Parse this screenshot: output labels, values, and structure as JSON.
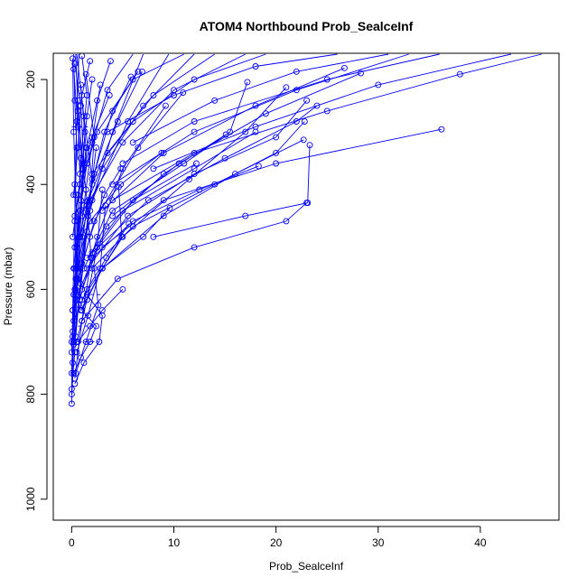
{
  "chart_data": {
    "type": "scatter",
    "title": "ATOM4 Northbound Prob_SealceInf",
    "xlabel": "Prob_SealceInf",
    "ylabel": "Pressure (mbar)",
    "xlim": [
      -1.8,
      47.7
    ],
    "ylim": [
      1040,
      150
    ],
    "y_reversed": true,
    "x_ticks": [
      0,
      10,
      20,
      30,
      40
    ],
    "y_ticks": [
      200,
      400,
      600,
      800,
      1000
    ],
    "grid": false,
    "legend": "none",
    "series_color": "#0000ff",
    "line_styles": [
      "solid",
      "dashed"
    ],
    "profiles": [
      {
        "x": [
          0.2,
          0.3,
          0.5,
          0.3,
          0.1,
          0.0
        ],
        "y": [
          150,
          240,
          330,
          460,
          640,
          800
        ]
      },
      {
        "x": [
          0.4,
          0.6,
          0.8,
          0.5,
          0.2,
          0.0
        ],
        "y": [
          150,
          260,
          380,
          520,
          700,
          818
        ]
      },
      {
        "x": [
          0.1,
          0.2,
          0.4,
          0.6,
          0.3,
          0.0
        ],
        "y": [
          160,
          300,
          420,
          560,
          720,
          790
        ]
      },
      {
        "x": [
          0.7,
          0.5,
          0.3,
          0.4,
          0.1,
          0.0
        ],
        "y": [
          150,
          280,
          400,
          580,
          690,
          760
        ]
      },
      {
        "x": [
          0.3,
          0.9,
          1.2,
          0.8,
          0.4,
          0.1
        ],
        "y": [
          170,
          250,
          360,
          500,
          620,
          740
        ]
      },
      {
        "x": [
          1.0,
          1.5,
          0.9,
          0.6,
          0.2,
          0.0
        ],
        "y": [
          155,
          230,
          350,
          470,
          610,
          720
        ]
      },
      {
        "x": [
          0.2,
          0.6,
          1.4,
          1.9,
          1.0,
          0.3
        ],
        "y": [
          180,
          290,
          410,
          540,
          660,
          770
        ]
      },
      {
        "x": [
          0.5,
          1.2,
          2.0,
          1.5,
          0.7,
          0.2
        ],
        "y": [
          150,
          270,
          390,
          490,
          630,
          705
        ]
      },
      {
        "x": [
          3.8,
          2.5,
          1.5,
          0.8,
          0.3
        ],
        "y": [
          165,
          240,
          330,
          450,
          600
        ]
      },
      {
        "x": [
          2.8,
          2.0,
          1.2,
          0.6,
          0.1
        ],
        "y": [
          210,
          320,
          440,
          560,
          680
        ]
      },
      {
        "x": [
          1.4,
          2.2,
          1.8,
          1.0,
          0.4
        ],
        "y": [
          190,
          310,
          430,
          550,
          690
        ]
      },
      {
        "x": [
          6.5,
          4.0,
          2.2,
          1.0
        ],
        "y": [
          185,
          260,
          380,
          500
        ]
      },
      {
        "x": [
          5.8,
          3.2,
          1.6,
          0.5
        ],
        "y": [
          195,
          300,
          430,
          580
        ]
      },
      {
        "x": [
          6.9,
          4.5,
          2.0,
          0.5
        ],
        "y": [
          185,
          280,
          400,
          520
        ]
      },
      {
        "x": [
          8.8,
          4.8,
          1.8,
          0.3
        ],
        "y": [
          340,
          400,
          470,
          560
        ]
      },
      {
        "x": [
          9.2,
          5.0,
          2.5,
          0.8
        ],
        "y": [
          250,
          370,
          500,
          620
        ]
      },
      {
        "x": [
          9.6,
          7.0,
          3.0,
          0.9
        ],
        "y": [
          445,
          500,
          560,
          640
        ]
      },
      {
        "x": [
          5.0,
          3.0,
          1.8,
          0.6
        ],
        "y": [
          600,
          640,
          670,
          700
        ]
      },
      {
        "x": [
          10.9,
          6.5,
          2.2,
          0.4
        ],
        "y": [
          225,
          330,
          470,
          600
        ]
      },
      {
        "x": [
          12.2,
          6.0,
          2.5,
          0.6
        ],
        "y": [
          360,
          430,
          520,
          610
        ]
      },
      {
        "x": [
          15.1,
          9.0,
          3.4,
          1.0
        ],
        "y": [
          305,
          380,
          480,
          600
        ]
      },
      {
        "x": [
          17.2,
          15.5,
          11.0,
          4.0,
          1.2
        ],
        "y": [
          205,
          300,
          360,
          450,
          560
        ]
      },
      {
        "x": [
          18.0,
          12.0,
          5.0,
          1.5
        ],
        "y": [
          300,
          370,
          450,
          540
        ]
      },
      {
        "x": [
          18.3,
          12.5,
          6.0,
          2.0
        ],
        "y": [
          365,
          410,
          470,
          540
        ]
      },
      {
        "x": [
          21.0,
          17.0,
          11.5,
          5.0,
          1.0
        ],
        "y": [
          215,
          300,
          390,
          500,
          620
        ]
      },
      {
        "x": [
          22.7,
          16.0,
          9.0,
          3.0
        ],
        "y": [
          315,
          380,
          460,
          560
        ]
      },
      {
        "x": [
          23.0,
          21.0,
          12.0,
          4.5,
          1.0
        ],
        "y": [
          435,
          470,
          520,
          580,
          660
        ]
      },
      {
        "x": [
          22.8,
          20.0,
          14.0,
          6.0,
          2.0
        ],
        "y": [
          280,
          340,
          400,
          480,
          560
        ]
      },
      {
        "x": [
          23.0,
          20.0,
          12.0,
          5.5,
          1.5
        ],
        "y": [
          240,
          310,
          380,
          460,
          560
        ]
      },
      {
        "x": [
          23.3,
          23.1,
          17.0,
          8.0
        ],
        "y": [
          325,
          435,
          460,
          500
        ]
      },
      {
        "x": [
          24.0,
          22.0,
          15.0,
          7.5,
          2.0
        ],
        "y": [
          250,
          280,
          350,
          430,
          530
        ]
      },
      {
        "x": [
          26.7,
          18.0,
          9.0,
          3.0
        ],
        "y": [
          178,
          250,
          340,
          450
        ]
      },
      {
        "x": [
          28.3,
          19.0,
          10.5,
          4.0
        ],
        "y": [
          188,
          265,
          360,
          460
        ]
      },
      {
        "x": [
          36.2,
          20.0,
          9.0,
          3.0
        ],
        "y": [
          295,
          360,
          430,
          520
        ]
      },
      {
        "x": [
          33.0,
          22.0,
          12.0,
          4.0
        ],
        "y": [
          150,
          220,
          300,
          400
        ]
      },
      {
        "x": [
          43.0,
          30.0,
          18.0,
          8.0
        ],
        "y": [
          150,
          210,
          290,
          370
        ]
      },
      {
        "x": [
          46.0,
          38.0,
          25.0,
          12.0,
          4.0
        ],
        "y": [
          150,
          190,
          260,
          340,
          430
        ]
      },
      {
        "x": [
          36.0,
          25.0,
          12.0,
          5.0
        ],
        "y": [
          150,
          200,
          280,
          360
        ]
      },
      {
        "x": [
          31.0,
          22.0,
          14.0,
          6.0
        ],
        "y": [
          150,
          185,
          240,
          320
        ]
      },
      {
        "x": [
          26.0,
          18.0,
          10.0,
          3.5
        ],
        "y": [
          150,
          175,
          230,
          300
        ]
      },
      {
        "x": [
          19.0,
          12.0,
          6.0,
          2.0
        ],
        "y": [
          150,
          200,
          280,
          380
        ]
      },
      {
        "x": [
          17.0,
          10.0,
          5.0,
          1.5
        ],
        "y": [
          150,
          220,
          320,
          440
        ]
      },
      {
        "x": [
          14.0,
          8.0,
          3.5,
          1.0
        ],
        "y": [
          150,
          230,
          340,
          460
        ]
      },
      {
        "x": [
          12.0,
          7.0,
          3.0,
          0.8
        ],
        "y": [
          150,
          250,
          370,
          500
        ]
      },
      {
        "x": [
          11.0,
          6.0,
          2.5,
          0.6
        ],
        "y": [
          150,
          200,
          300,
          420
        ]
      },
      {
        "x": [
          9.5,
          5.5,
          2.0,
          0.5
        ],
        "y": [
          150,
          280,
          430,
          580
        ]
      },
      {
        "x": [
          7.0,
          4.0,
          1.8,
          0.4
        ],
        "y": [
          150,
          300,
          450,
          610
        ]
      },
      {
        "x": [
          6.0,
          3.5,
          1.5,
          0.3
        ],
        "y": [
          150,
          220,
          360,
          520
        ]
      },
      {
        "x": [
          4.8,
          3.2,
          1.8,
          0.6
        ],
        "y": [
          370,
          420,
          500,
          580
        ]
      },
      {
        "x": [
          4.6,
          4.9,
          3.0,
          1.0
        ],
        "y": [
          405,
          500,
          560,
          640
        ]
      },
      {
        "x": [
          3.0,
          2.5,
          1.5,
          0.5
        ],
        "y": [
          410,
          520,
          620,
          700
        ]
      },
      {
        "x": [
          3.3,
          2.8,
          1.6,
          0.5
        ],
        "y": [
          440,
          560,
          650,
          720
        ]
      },
      {
        "x": [
          2.2,
          2.6,
          1.4,
          0.4
        ],
        "y": [
          560,
          630,
          700,
          760
        ]
      },
      {
        "x": [
          1.5,
          3.0,
          2.7,
          1.2,
          0.3
        ],
        "y": [
          610,
          650,
          700,
          740,
          780
        ]
      },
      {
        "x": [
          1.0,
          2.4,
          1.8,
          0.9,
          0.2
        ],
        "y": [
          640,
          670,
          700,
          730,
          760
        ]
      },
      {
        "x": [
          5.6,
          3.4,
          1.5,
          0.2
        ],
        "y": [
          475,
          540,
          600,
          660
        ]
      },
      {
        "x": [
          3.7,
          2.0,
          0.8,
          0.1
        ],
        "y": [
          230,
          310,
          400,
          500
        ]
      },
      {
        "x": [
          2.0,
          1.5,
          1.0,
          0.3
        ],
        "y": [
          200,
          270,
          360,
          470
        ]
      },
      {
        "x": [
          1.8,
          1.0,
          0.6,
          0.2
        ],
        "y": [
          165,
          230,
          330,
          420
        ]
      },
      {
        "x": [
          0.9,
          1.4,
          0.8,
          0.2
        ],
        "y": [
          210,
          330,
          450,
          560
        ]
      },
      {
        "x": [
          0.6,
          1.1,
          0.7,
          0.1
        ],
        "y": [
          240,
          370,
          500,
          640
        ]
      },
      {
        "x": [
          1.3,
          0.9,
          0.5,
          0.0
        ],
        "y": [
          300,
          430,
          560,
          700
        ]
      },
      {
        "x": [
          2.4,
          1.6,
          0.9,
          0.2
        ],
        "y": [
          330,
          460,
          590,
          700
        ]
      }
    ],
    "dashed_segments": [
      {
        "x": [
          0.0,
          3.2
        ],
        "y": [
          610,
          610
        ]
      },
      {
        "x": [
          0.0,
          2.6
        ],
        "y": [
          700,
          700
        ]
      },
      {
        "x": [
          0.0,
          1.8
        ],
        "y": [
          290,
          290
        ]
      },
      {
        "x": [
          0.0,
          2.2
        ],
        "y": [
          670,
          670
        ]
      }
    ]
  }
}
